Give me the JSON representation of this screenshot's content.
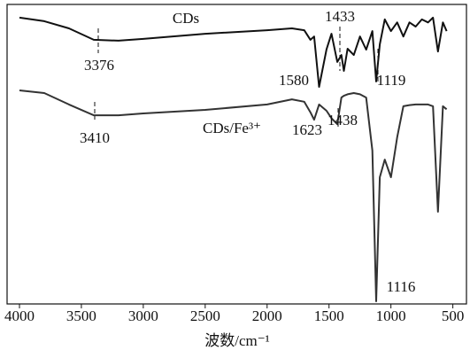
{
  "chart_data": {
    "type": "line",
    "xlabel": "波数/cm⁻¹",
    "xlim": [
      4100,
      390
    ],
    "ylim": [
      0,
      100
    ],
    "xticks": [
      4000,
      3500,
      3000,
      2500,
      2000,
      1500,
      1000,
      500
    ],
    "annotations": [
      "3376",
      "1433",
      "1580",
      "1119",
      "3410",
      "1623",
      "1438",
      "1116"
    ],
    "x": [
      4000,
      3800,
      3600,
      3400,
      3200,
      3000,
      2500,
      2000,
      1800,
      1700,
      1650,
      1620,
      1580,
      1520,
      1480,
      1433,
      1400,
      1380,
      1350,
      1300,
      1250,
      1200,
      1150,
      1119,
      1090,
      1050,
      1000,
      950,
      900,
      850,
      800,
      750,
      700,
      660,
      620,
      580,
      550
    ],
    "series": [
      {
        "name": "CDs",
        "color": "#111111",
        "values": [
          95.6,
          94.4,
          92,
          88.2,
          87.9,
          88.5,
          90.2,
          91.4,
          92,
          91.4,
          88.2,
          89.3,
          72.5,
          85,
          90.2,
          80.8,
          83.1,
          77.8,
          85.2,
          83.1,
          89.3,
          84.9,
          91.1,
          74.3,
          86.7,
          95,
          91.1,
          94,
          89.3,
          94,
          92.6,
          95,
          94,
          95.6,
          84.3,
          94,
          91.1
        ]
      },
      {
        "name": "CDs/Fe³⁺",
        "color": "#333333",
        "values": [
          71.3,
          70.4,
          66.6,
          63,
          63,
          63.6,
          64.8,
          66.6,
          68.3,
          67.5,
          64,
          61.5,
          66.6,
          64.5,
          62,
          60,
          68.9,
          69.5,
          70,
          70.4,
          70,
          68.9,
          51.2,
          0.9,
          42.3,
          48.2,
          42.3,
          55.6,
          66,
          66.4,
          66.6,
          66.6,
          66.6,
          66,
          30.8,
          66,
          65
        ]
      }
    ]
  }
}
